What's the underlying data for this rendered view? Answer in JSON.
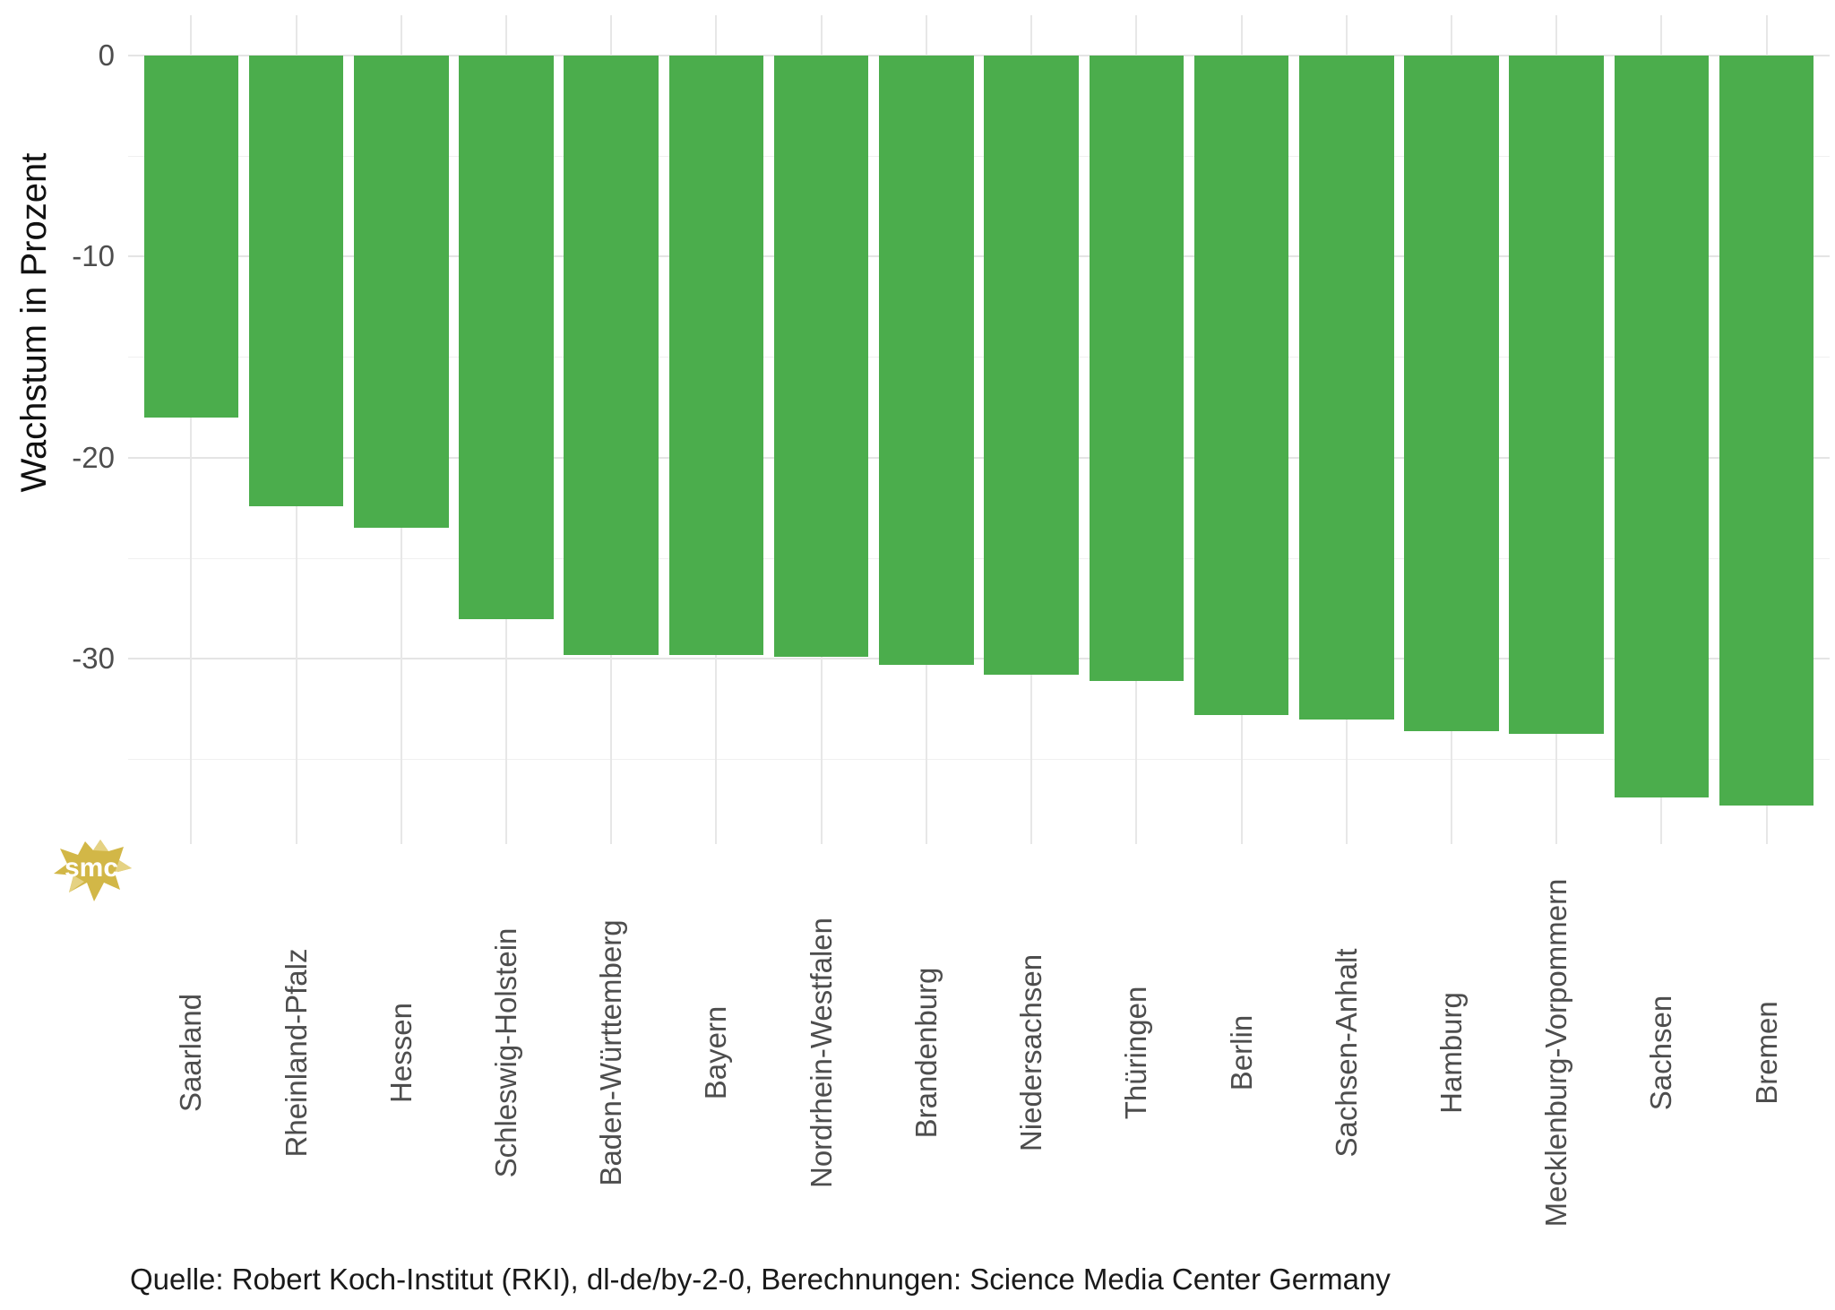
{
  "figure": {
    "background": "#ffffff"
  },
  "chart_data": {
    "type": "bar",
    "title": "",
    "xlabel": "",
    "ylabel": "Wachstum in Prozent",
    "categories": [
      "Saarland",
      "Rheinland-Pfalz",
      "Hessen",
      "Schleswig-Holstein",
      "Baden-Württemberg",
      "Bayern",
      "Nordrhein-Westfalen",
      "Brandenburg",
      "Niedersachsen",
      "Thüringen",
      "Berlin",
      "Sachsen-Anhalt",
      "Hamburg",
      "Mecklenburg-Vorpommern",
      "Sachsen",
      "Bremen"
    ],
    "values": [
      -18.0,
      -22.4,
      -23.5,
      -28.0,
      -29.8,
      -29.8,
      -29.9,
      -30.3,
      -30.8,
      -31.1,
      -32.8,
      -33.0,
      -33.6,
      -33.7,
      -36.9,
      -37.3
    ],
    "unit": "Prozent",
    "bar_color": "#4bad4c",
    "ylim": [
      2.0,
      -39.2
    ],
    "y_ticks_major": [
      0,
      -10,
      -20,
      -30
    ],
    "y_tick_labels": [
      "0",
      "-10",
      "-20",
      "-30"
    ],
    "y_ticks_minor": [
      -5,
      -15,
      -25,
      -35
    ],
    "grid": "on",
    "legend": "none",
    "bar_width_fraction": 0.9
  },
  "annotations": {
    "source_note": "Quelle: Robert Koch-Institut (RKI), dl-de/by-2-0, Berechnungen: Science Media Center Germany"
  },
  "logo": {
    "text": "smc",
    "fill": "#d2b747",
    "facet": "#e5d283",
    "text_color": "#ffffff"
  },
  "colors": {
    "grid_major": "#e4e4e4",
    "grid_minor": "#f0f0f0",
    "axis_text": "#4d4d4d",
    "axis_title": "#111111",
    "source_text": "#1a1a1a"
  }
}
